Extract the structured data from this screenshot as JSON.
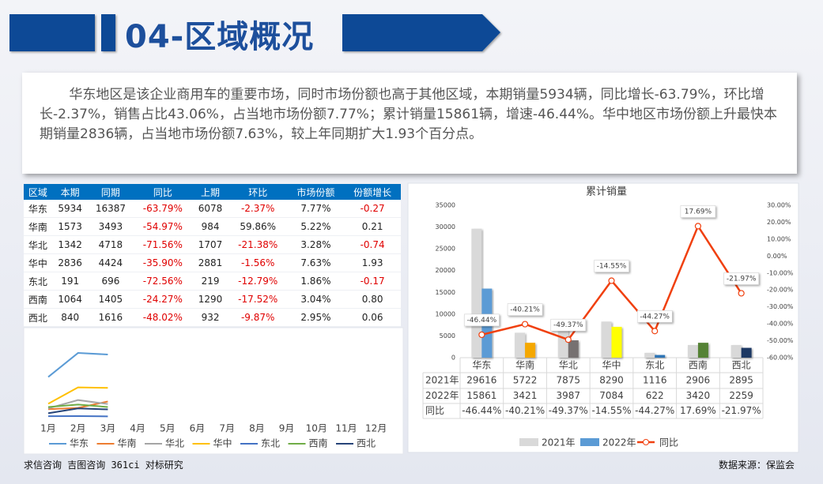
{
  "header": {
    "title": "04-区域概况"
  },
  "paragraph": "华东地区是该企业商用车的重要市场，同时市场份额也高于其他区域，本期销量5934辆，同比增长-63.79%，环比增长-2.37%，销售占比43.06%，占当地市场份额7.77%；累计销量15861辆，增速-46.44%。华中地区市场份额上升最快本期销量2836辆，占当地市场份额7.63%，较上年同期扩大1.93个百分点。",
  "table": {
    "header": [
      "区域",
      "本期",
      "同期",
      "同比",
      "上期",
      "环比",
      "市场份额",
      "份额增长"
    ],
    "rows": [
      [
        "华东",
        "5934",
        "16387",
        "-63.79%",
        "6078",
        "-2.37%",
        "7.77%",
        "-0.27"
      ],
      [
        "华南",
        "1573",
        "3493",
        "-54.97%",
        "984",
        "59.86%",
        "5.22%",
        "0.21"
      ],
      [
        "华北",
        "1342",
        "4718",
        "-71.56%",
        "1707",
        "-21.38%",
        "3.28%",
        "-0.74"
      ],
      [
        "华中",
        "2836",
        "4424",
        "-35.90%",
        "2881",
        "-1.56%",
        "7.63%",
        "1.93"
      ],
      [
        "东北",
        "191",
        "696",
        "-72.56%",
        "219",
        "-12.79%",
        "1.86%",
        "-0.17"
      ],
      [
        "西南",
        "1064",
        "1405",
        "-24.27%",
        "1290",
        "-17.52%",
        "3.04%",
        "0.80"
      ],
      [
        "西北",
        "840",
        "1616",
        "-48.02%",
        "932",
        "-9.87%",
        "2.95%",
        "0.06"
      ]
    ]
  },
  "chart_data": [
    {
      "type": "line",
      "categories": [
        "1月",
        "2月",
        "3月",
        "4月",
        "5月",
        "6月",
        "7月",
        "8月",
        "9月",
        "10月",
        "11月",
        "12月"
      ],
      "series": [
        {
          "name": "华东",
          "color": "#5b9bd5",
          "values": [
            3849,
            6078,
            5934,
            null,
            null,
            null,
            null,
            null,
            null,
            null,
            null,
            null
          ]
        },
        {
          "name": "华南",
          "color": "#ed7d31",
          "values": [
            864,
            984,
            1573,
            null,
            null,
            null,
            null,
            null,
            null,
            null,
            null,
            null
          ]
        },
        {
          "name": "华北",
          "color": "#a5a5a5",
          "values": [
            938,
            1707,
            1342,
            null,
            null,
            null,
            null,
            null,
            null,
            null,
            null,
            null
          ]
        },
        {
          "name": "华中",
          "color": "#ffc000",
          "values": [
            1367,
            2881,
            2836,
            null,
            null,
            null,
            null,
            null,
            null,
            null,
            null,
            null
          ]
        },
        {
          "name": "东北",
          "color": "#4472c4",
          "values": [
            212,
            219,
            191,
            null,
            null,
            null,
            null,
            null,
            null,
            null,
            null,
            null
          ]
        },
        {
          "name": "西南",
          "color": "#70ad47",
          "values": [
            1066,
            1290,
            1064,
            null,
            null,
            null,
            null,
            null,
            null,
            null,
            null,
            null
          ]
        },
        {
          "name": "西北",
          "color": "#264478",
          "values": [
            487,
            932,
            840,
            null,
            null,
            null,
            null,
            null,
            null,
            null,
            null,
            null
          ]
        }
      ]
    },
    {
      "type": "bar",
      "title": "累计销量",
      "categories": [
        "华东",
        "华南",
        "华北",
        "华中",
        "东北",
        "西南",
        "西北"
      ],
      "series": [
        {
          "name": "2021年",
          "color": "#d9d9d9",
          "values": [
            29616,
            5722,
            7875,
            8290,
            1116,
            2906,
            2895
          ]
        },
        {
          "name": "2022年",
          "color": "#5b9bd5",
          "colors": [
            "#5b9bd5",
            "#f5a800",
            "#767171",
            "#ffff00",
            "#2e75b6",
            "#548235",
            "#1f3864"
          ],
          "values": [
            15861,
            3421,
            3987,
            7084,
            622,
            3420,
            2259
          ]
        },
        {
          "name": "同比",
          "type": "line",
          "axis": "y2",
          "color": "#f0400f",
          "values": [
            -46.44,
            -40.21,
            -49.37,
            -14.55,
            -44.27,
            17.69,
            -21.97
          ],
          "value_labels": [
            "-46.44%",
            "-40.21%",
            "-49.37%",
            "-14.55%",
            "-44.27%",
            "17.69%",
            "-21.97%"
          ]
        }
      ],
      "ylim": [
        0,
        35000
      ],
      "yticks": [
        0,
        5000,
        10000,
        15000,
        20000,
        25000,
        30000,
        35000
      ],
      "y2lim": [
        -60,
        30
      ],
      "y2ticks": [
        {
          "value": -60,
          "label": "-60.00%"
        },
        {
          "value": -50,
          "label": "-50.00%"
        },
        {
          "value": -40,
          "label": "-40.00%"
        },
        {
          "value": -30,
          "label": "-30.00%"
        },
        {
          "value": -20,
          "label": "-20.00%"
        },
        {
          "value": -10,
          "label": "-10.00%"
        },
        {
          "value": 0,
          "label": "0.00%"
        },
        {
          "value": 10,
          "label": "10.00%"
        },
        {
          "value": 20,
          "label": "20.00%"
        },
        {
          "value": 30,
          "label": "30.00%"
        }
      ]
    }
  ],
  "footer": {
    "left": "求信咨询 吉图咨询 361ci 对标研究",
    "right": "数据来源：保监会"
  }
}
